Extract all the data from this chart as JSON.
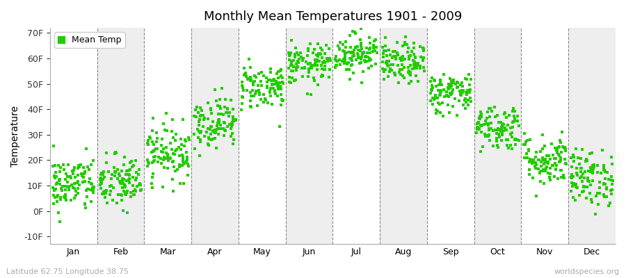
{
  "title": "Monthly Mean Temperatures 1901 - 2009",
  "ylabel": "Temperature",
  "bottom_left": "Latitude 62.75 Longitude 38.75",
  "bottom_right": "worldspecies.org",
  "legend_label": "Mean Temp",
  "dot_color": "#22cc00",
  "background_color": "#ffffff",
  "plot_bg_color": "#ffffff",
  "ylim": [
    -13,
    72
  ],
  "yticks": [
    -10,
    0,
    10,
    20,
    30,
    40,
    50,
    60,
    70
  ],
  "ytick_labels": [
    "-10F",
    "0F",
    "10F",
    "20F",
    "30F",
    "40F",
    "50F",
    "60F",
    "70F"
  ],
  "months": [
    "Jan",
    "Feb",
    "Mar",
    "Apr",
    "May",
    "Jun",
    "Jul",
    "Aug",
    "Sep",
    "Oct",
    "Nov",
    "Dec"
  ],
  "mean_temps_F": [
    10.5,
    11.0,
    23.0,
    35.0,
    49.0,
    57.5,
    62.0,
    58.0,
    46.5,
    33.0,
    20.0,
    13.0
  ],
  "std_temps_F": [
    5.5,
    5.5,
    5.5,
    5.0,
    4.5,
    4.0,
    4.0,
    4.0,
    4.0,
    4.5,
    5.0,
    5.5
  ],
  "n_years": 109,
  "random_seed": 42,
  "figsize": [
    9.0,
    4.0
  ],
  "dpi": 100
}
